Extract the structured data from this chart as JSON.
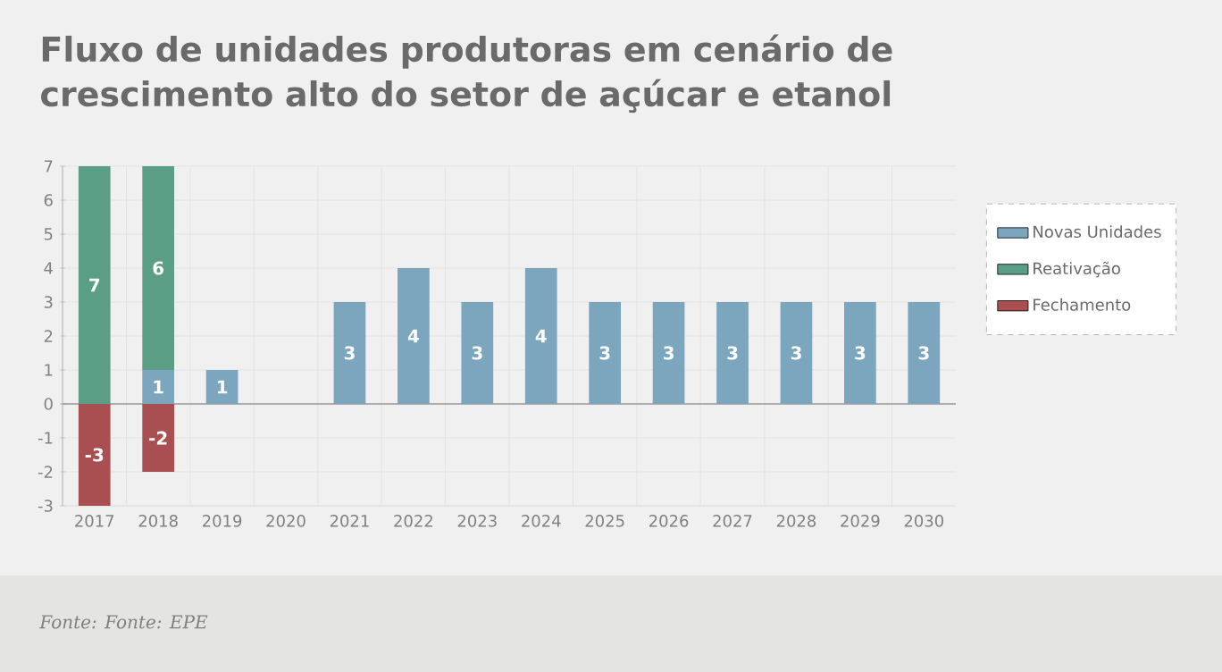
{
  "chart_data": {
    "type": "bar",
    "title": "Fluxo de unidades produtoras em cenário de crescimento alto do setor de açúcar e etanol",
    "categories": [
      "2017",
      "2018",
      "2019",
      "2020",
      "2021",
      "2022",
      "2023",
      "2024",
      "2025",
      "2026",
      "2027",
      "2028",
      "2029",
      "2030"
    ],
    "stacked": true,
    "ylim": [
      -3,
      7
    ],
    "yticks": [
      -3,
      -2,
      -1,
      0,
      1,
      2,
      3,
      4,
      5,
      6,
      7
    ],
    "grid": true,
    "legend": "right",
    "annotations": [
      "Fonte:  Fonte: EPE"
    ],
    "series": [
      {
        "name": "Novas Unidades",
        "color": "#7ba6bd",
        "values": [
          0,
          1,
          1,
          0,
          3,
          4,
          3,
          4,
          3,
          3,
          3,
          3,
          3,
          3
        ],
        "value_labels": [
          null,
          "1",
          "1",
          null,
          "3",
          "4",
          "3",
          "4",
          "3",
          "3",
          "3",
          "3",
          "3",
          "3"
        ]
      },
      {
        "name": "Reativação",
        "color": "#5a9f85",
        "values": [
          7,
          6,
          0,
          0,
          0,
          0,
          0,
          0,
          0,
          0,
          0,
          0,
          0,
          0
        ],
        "value_labels": [
          "7",
          "6",
          null,
          null,
          null,
          null,
          null,
          null,
          null,
          null,
          null,
          null,
          null,
          null
        ]
      },
      {
        "name": "Fechamento",
        "color": "#a94f52",
        "values": [
          -3,
          -2,
          0,
          0,
          0,
          0,
          0,
          0,
          0,
          0,
          0,
          0,
          0,
          0
        ],
        "value_labels": [
          "-3",
          "-2",
          null,
          null,
          null,
          null,
          null,
          null,
          null,
          null,
          null,
          null,
          null,
          null
        ]
      }
    ]
  }
}
